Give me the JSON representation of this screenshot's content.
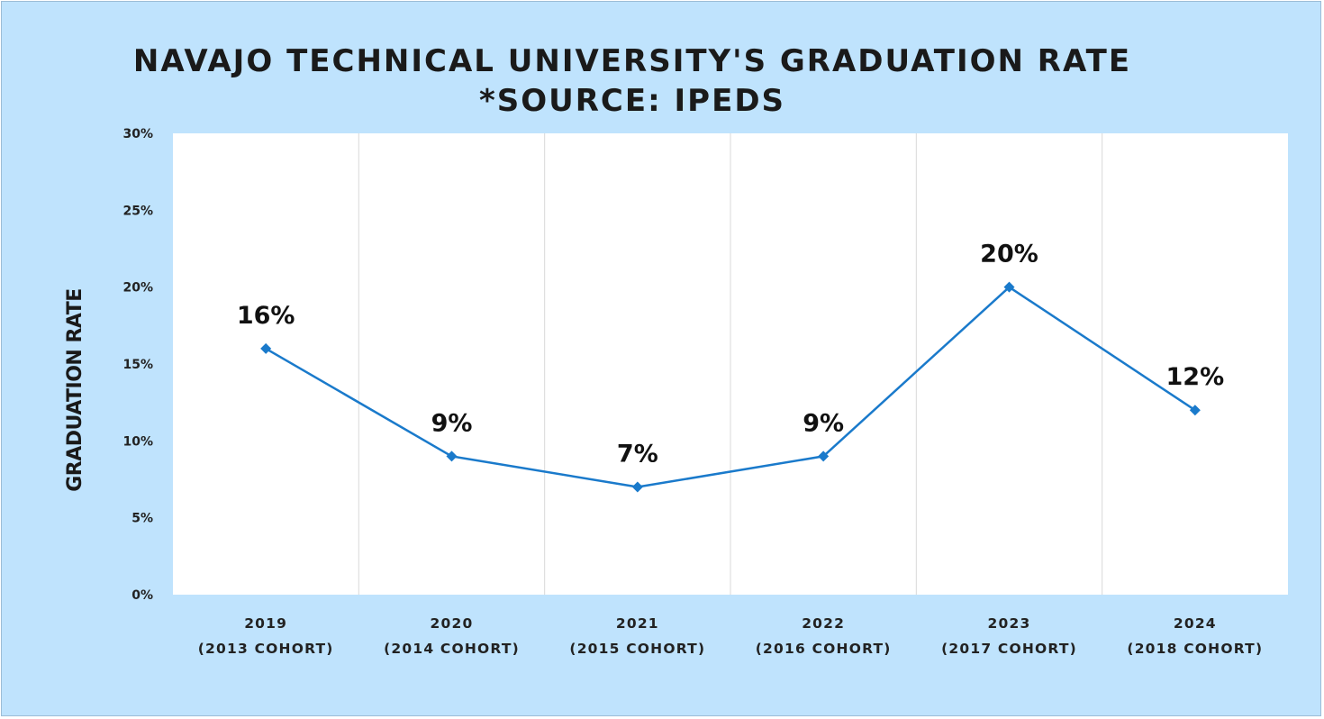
{
  "chart_data": {
    "type": "line",
    "title": "NAVAJO TECHNICAL UNIVERSITY'S GRADUATION RATE",
    "subtitle": "*SOURCE: IPEDS",
    "ylabel": "GRADUATION RATE",
    "xlabel": "",
    "categories": [
      [
        "2019",
        "(2013 COHORT)"
      ],
      [
        "2020",
        "(2014 COHORT)"
      ],
      [
        "2021",
        "(2015 COHORT)"
      ],
      [
        "2022",
        "(2016 COHORT)"
      ],
      [
        "2023",
        "(2017 COHORT)"
      ],
      [
        "2024",
        "(2018 COHORT)"
      ]
    ],
    "series": [
      {
        "values": [
          0.16,
          0.09,
          0.07,
          0.09,
          0.2,
          0.12
        ],
        "data_labels": [
          "16%",
          "9%",
          "7%",
          "9%",
          "20%",
          "12%"
        ],
        "color": "#1a7acb"
      }
    ],
    "ylim": [
      0,
      0.3
    ],
    "yticks": [
      0,
      0.05,
      0.1,
      0.15,
      0.2,
      0.25,
      0.3
    ],
    "ytick_labels": [
      "0%",
      "5%",
      "10%",
      "15%",
      "20%",
      "25%",
      "30%"
    ],
    "grid": "vertical",
    "legend": "none",
    "colors": {
      "background": "#bfe3fd",
      "plot_area": "#ffffff",
      "gridline": "#d9d9d9",
      "line": "#1a7acb"
    }
  }
}
